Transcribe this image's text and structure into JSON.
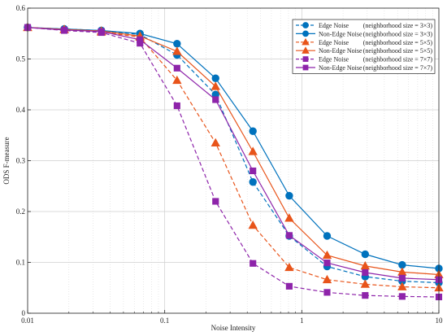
{
  "chart_data": {
    "type": "line",
    "xscale": "log",
    "xlabel": "Noise Intensity",
    "ylabel": "ODS F-measure",
    "xlim": [
      0.01,
      10
    ],
    "ylim": [
      0,
      0.6
    ],
    "xticks": [
      {
        "value": 0.01,
        "label": "0.01"
      },
      {
        "value": 0.1,
        "label": "0.1"
      },
      {
        "value": 1,
        "label": "1"
      },
      {
        "value": 10,
        "label": "10"
      }
    ],
    "yticks": [
      {
        "value": 0,
        "label": "0"
      },
      {
        "value": 0.1,
        "label": "0.1"
      },
      {
        "value": 0.2,
        "label": "0.2"
      },
      {
        "value": 0.3,
        "label": "0.3"
      },
      {
        "value": 0.4,
        "label": "0.4"
      },
      {
        "value": 0.5,
        "label": "0.5"
      },
      {
        "value": 0.6,
        "label": "0.6"
      }
    ],
    "grid": true,
    "legend_position": "top-right",
    "x": [
      0.01,
      0.0185,
      0.0345,
      0.066,
      0.123,
      0.235,
      0.44,
      0.81,
      1.53,
      2.9,
      5.4,
      10
    ],
    "series": [
      {
        "name": "Edge Noise",
        "legend_extra": "(neighborhood size = 3×3)",
        "color": "#0072BD",
        "marker": "circle",
        "dash": true,
        "values": [
          0.562,
          0.559,
          0.556,
          0.548,
          0.508,
          0.43,
          0.258,
          0.152,
          0.092,
          0.072,
          0.063,
          0.06
        ]
      },
      {
        "name": "Non-Edge Noise",
        "legend_extra": "(neighborhood size = 3×3)",
        "color": "#0072BD",
        "marker": "circle",
        "dash": false,
        "values": [
          0.562,
          0.559,
          0.556,
          0.55,
          0.53,
          0.462,
          0.358,
          0.231,
          0.152,
          0.116,
          0.095,
          0.088
        ]
      },
      {
        "name": "Edge Noise",
        "legend_extra": "(neighborhood size = 5×5)",
        "color": "#E8541A",
        "marker": "triangle",
        "dash": true,
        "values": [
          0.562,
          0.558,
          0.553,
          0.543,
          0.458,
          0.335,
          0.173,
          0.09,
          0.066,
          0.057,
          0.052,
          0.05
        ]
      },
      {
        "name": "Non-Edge Noise",
        "legend_extra": "(neighborhood size = 5×5)",
        "color": "#E8541A",
        "marker": "triangle",
        "dash": false,
        "values": [
          0.562,
          0.558,
          0.555,
          0.545,
          0.515,
          0.446,
          0.318,
          0.187,
          0.114,
          0.093,
          0.081,
          0.076
        ]
      },
      {
        "name": "Edge Noise",
        "legend_extra": "(neighborhood size = 7×7)",
        "color": "#8E24AA",
        "marker": "square",
        "dash": true,
        "values": [
          0.562,
          0.556,
          0.552,
          0.531,
          0.408,
          0.22,
          0.098,
          0.053,
          0.041,
          0.035,
          0.033,
          0.032
        ]
      },
      {
        "name": "Non-Edge Noise",
        "legend_extra": "(neighborhood size = 7×7)",
        "color": "#8E24AA",
        "marker": "square",
        "dash": false,
        "values": [
          0.562,
          0.557,
          0.554,
          0.538,
          0.482,
          0.42,
          0.28,
          0.153,
          0.099,
          0.08,
          0.069,
          0.066
        ]
      }
    ]
  }
}
